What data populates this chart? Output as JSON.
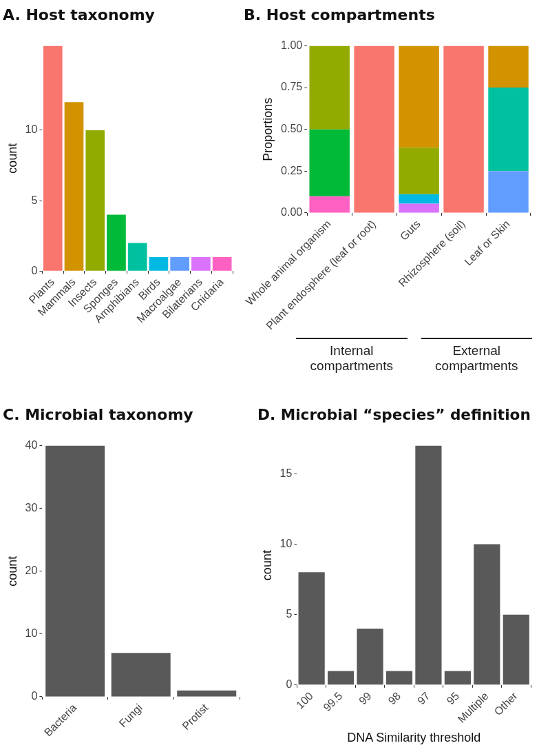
{
  "chart_data": [
    {
      "type": "bar",
      "title": "A. Host taxonomy",
      "ylabel": "count",
      "categories": [
        "Plants",
        "Mammals",
        "Insects",
        "Sponges",
        "Amphibians",
        "Birds",
        "Macroalgae",
        "Bilaterians",
        "Cnidaria"
      ],
      "values": [
        16,
        12,
        10,
        4,
        2,
        1,
        1,
        1,
        1
      ],
      "colors": [
        "#f8766d",
        "#d39200",
        "#93aa00",
        "#00ba38",
        "#00c19f",
        "#00b9e3",
        "#619cff",
        "#db72fb",
        "#ff61c3"
      ],
      "ylim": [
        0,
        16
      ],
      "yticks": [
        0,
        5,
        10
      ],
      "legend": false,
      "grid": false
    },
    {
      "type": "bar",
      "title": "B. Host compartments",
      "ylabel": "Proportions",
      "categories": [
        "Whole animal organism",
        "Plant endosphere (leaf or root)",
        "Guts",
        "Rhizosphere (soil)",
        "Leaf or Skin"
      ],
      "stacked": true,
      "series": [
        {
          "color": "#ff61c3",
          "values": [
            0.1,
            0,
            0,
            0,
            0
          ]
        },
        {
          "color": "#db72fb",
          "values": [
            0,
            0,
            0.056,
            0,
            0
          ]
        },
        {
          "color": "#619cff",
          "values": [
            0,
            0,
            0,
            0,
            0.25
          ]
        },
        {
          "color": "#00b9e3",
          "values": [
            0,
            0,
            0.056,
            0,
            0
          ]
        },
        {
          "color": "#00c19f",
          "values": [
            0,
            0,
            0,
            0,
            0.5
          ]
        },
        {
          "color": "#00ba38",
          "values": [
            0.4,
            0,
            0,
            0,
            0
          ]
        },
        {
          "color": "#93aa00",
          "values": [
            0.5,
            0,
            0.278,
            0,
            0
          ]
        },
        {
          "color": "#d39200",
          "values": [
            0,
            0,
            0.61,
            0,
            0.25
          ]
        },
        {
          "color": "#f8766d",
          "values": [
            0,
            1,
            0,
            1,
            0
          ]
        }
      ],
      "ylim": [
        0,
        1
      ],
      "yticks": [
        {
          "value": 0,
          "label": "0.00"
        },
        {
          "value": 0.25,
          "label": "0.25"
        },
        {
          "value": 0.5,
          "label": "0.50"
        },
        {
          "value": 0.75,
          "label": "0.75"
        },
        {
          "value": 1,
          "label": "1.00"
        }
      ],
      "annotations": [
        "Internal compartments",
        "External compartments"
      ],
      "legend": false,
      "grid": false
    },
    {
      "type": "bar",
      "title": "C. Microbial taxonomy",
      "ylabel": "count",
      "categories": [
        "Bacteria",
        "Fungi",
        "Protist"
      ],
      "values": [
        40,
        7,
        1
      ],
      "color": "#595959",
      "ylim": [
        0,
        40
      ],
      "yticks": [
        0,
        10,
        20,
        30,
        40
      ],
      "legend": false,
      "grid": false
    },
    {
      "type": "bar",
      "title": "D. Microbial “species” definition",
      "xlabel": "DNA Similarity threshold",
      "ylabel": "count",
      "categories": [
        "100",
        "99.5",
        "99",
        "98",
        "97",
        "95",
        "Multiple",
        "Other"
      ],
      "values": [
        8,
        1,
        4,
        1,
        17,
        1,
        10,
        5
      ],
      "color": "#595959",
      "ylim": [
        0,
        17
      ],
      "yticks": [
        0,
        5,
        10,
        15
      ],
      "legend": false,
      "grid": false
    }
  ]
}
